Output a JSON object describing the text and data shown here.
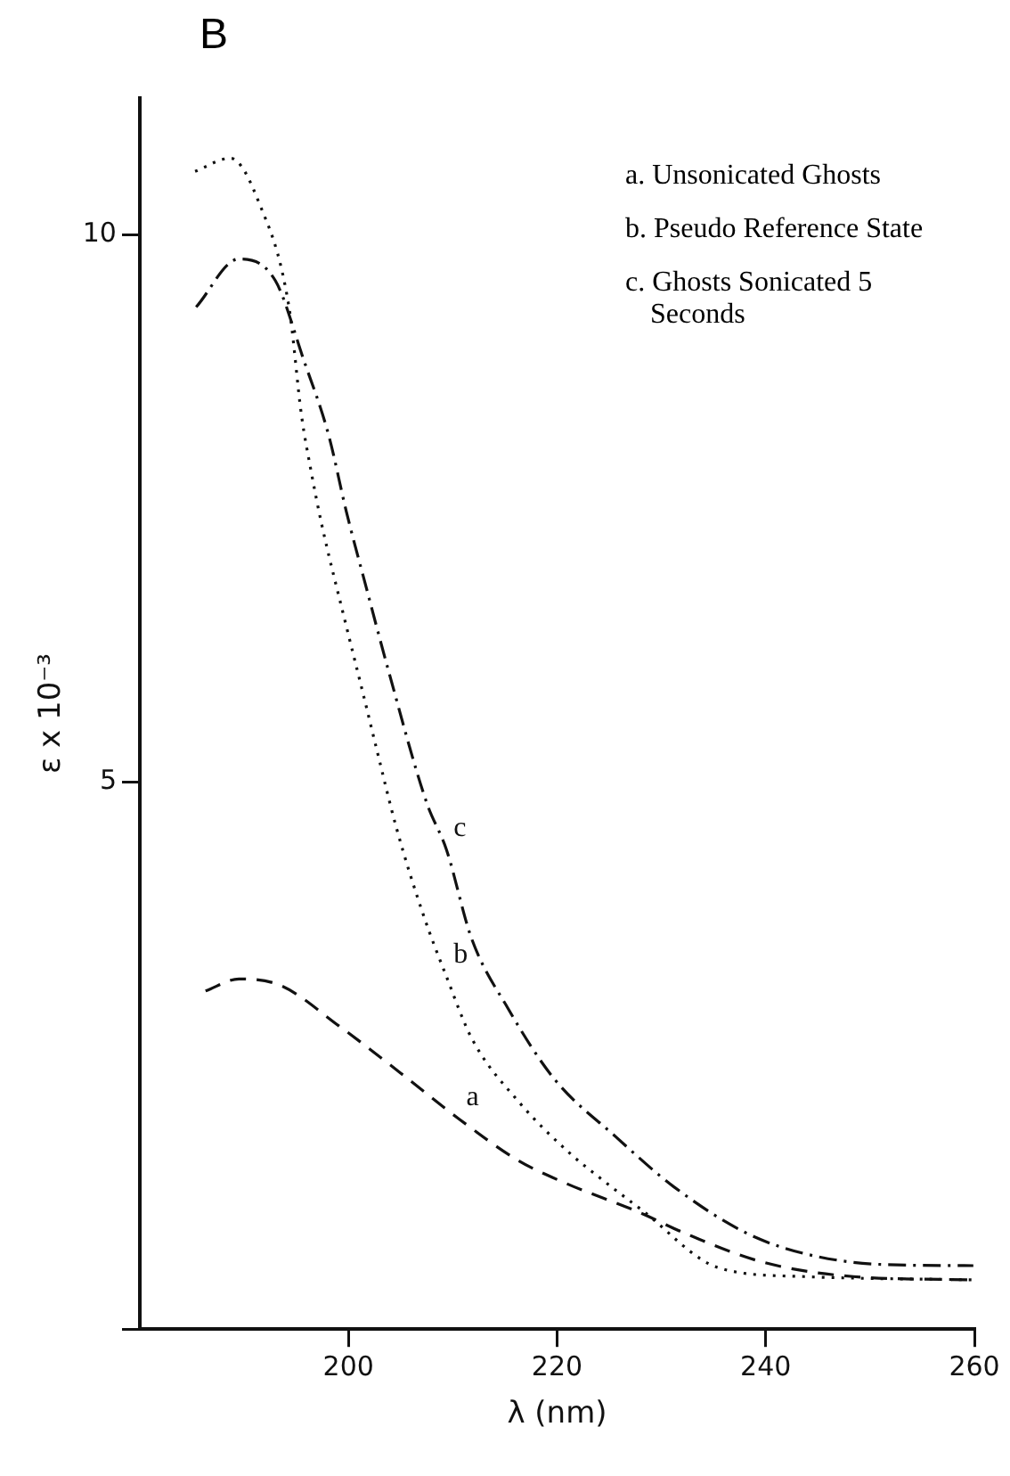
{
  "chart_data": {
    "type": "line",
    "title": "B",
    "xlabel": "λ (nm)",
    "ylabel": "ε x 10⁻³",
    "xlim": [
      180,
      260
    ],
    "xticks": [
      200,
      220,
      240,
      260
    ],
    "ylim": [
      0,
      11.25
    ],
    "yticks": [
      {
        "value": 0,
        "label": null
      },
      5,
      10
    ],
    "grid": false,
    "legend": false,
    "marker": "none",
    "series": [
      {
        "name": "a",
        "color": "#111111",
        "line_style": "dashed",
        "x": [
          186.3,
          189.5,
          193.5,
          199.1,
          205,
          210.6,
          216.3,
          220.9,
          227.3,
          232.9,
          239.8,
          248.4,
          259.9
        ],
        "values": [
          3.09,
          3.2,
          3.14,
          2.77,
          2.34,
          1.92,
          1.54,
          1.33,
          1.09,
          0.85,
          0.61,
          0.48,
          0.45
        ]
      },
      {
        "name": "b",
        "color": "#111111",
        "line_style": "dotted",
        "x": [
          185.3,
          188.7,
          191.4,
          194.3,
          195.5,
          196.4,
          197.4,
          199.7,
          201.5,
          202.6,
          204.6,
          207.2,
          209.4,
          211.8,
          216.3,
          221.3,
          224,
          228.1,
          235.5,
          243.7,
          259.9
        ],
        "values": [
          10.58,
          10.7,
          10.3,
          9.34,
          8.35,
          7.85,
          7.37,
          6.46,
          5.77,
          5.34,
          4.58,
          3.78,
          3.22,
          2.66,
          2.08,
          1.6,
          1.39,
          1.09,
          0.56,
          0.48,
          0.45
        ]
      },
      {
        "name": "c",
        "color": "#111111",
        "line_style": "dashdot",
        "x": [
          185.4,
          189.5,
          193,
          195.7,
          198.1,
          199.8,
          201.7,
          203.8,
          207.5,
          209.4,
          211.8,
          215.3,
          219.7,
          225.6,
          231.2,
          238.1,
          243.7,
          251.3,
          259.9
        ],
        "values": [
          9.34,
          9.78,
          9.58,
          8.86,
          8.17,
          7.47,
          6.78,
          6.03,
          4.81,
          4.38,
          3.57,
          2.93,
          2.29,
          1.76,
          1.3,
          0.88,
          0.69,
          0.59,
          0.58
        ]
      }
    ],
    "annotations": [
      "a. Unsonicated Ghosts",
      "b. Pseudo Reference State",
      "c. Ghosts Sonicated 5 Seconds"
    ]
  }
}
